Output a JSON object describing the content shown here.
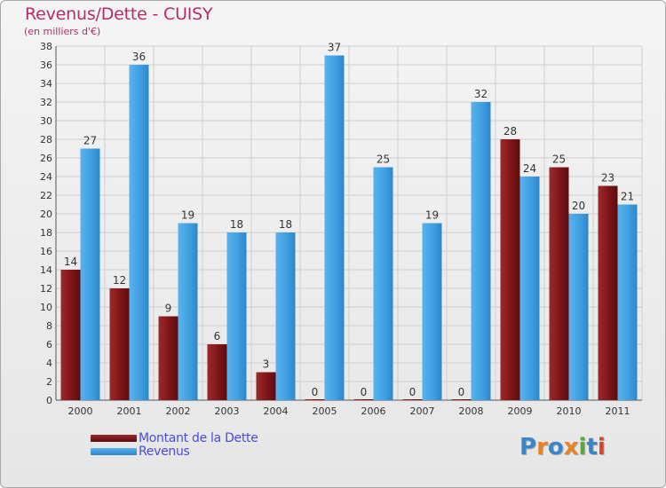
{
  "title": "Revenus/Dette - CUISY",
  "subtitle": "(en milliers d'€)",
  "logo": {
    "letters": [
      {
        "ch": "P",
        "color": "#3a86c8"
      },
      {
        "ch": "r",
        "color": "#e8822a"
      },
      {
        "ch": "o",
        "color": "#3a86c8"
      },
      {
        "ch": "x",
        "color": "#e8822a"
      },
      {
        "ch": "i",
        "color": "#5aa83a"
      },
      {
        "ch": "t",
        "color": "#3a86c8"
      },
      {
        "ch": "i",
        "color": "#d9472b"
      }
    ]
  },
  "colors": {
    "dette": "#7b1416",
    "revenus": "#3e9ee0",
    "axis_text": "#333333",
    "grid": "#cfcfcf"
  },
  "chart_data": {
    "type": "bar",
    "categories": [
      "2000",
      "2001",
      "2002",
      "2003",
      "2004",
      "2005",
      "2006",
      "2007",
      "2008",
      "2009",
      "2010",
      "2011"
    ],
    "series": [
      {
        "name": "Montant de la Dette",
        "values": [
          14,
          12,
          9,
          6,
          3,
          0,
          0,
          0,
          0,
          28,
          25,
          23
        ]
      },
      {
        "name": "Revenus",
        "values": [
          27,
          36,
          19,
          18,
          18,
          37,
          25,
          19,
          32,
          24,
          20,
          21
        ]
      }
    ],
    "y_ticks": [
      "0",
      "2",
      "4",
      "6",
      "8",
      "10",
      "12",
      "14",
      "16",
      "18",
      "20",
      "22",
      "24",
      "26",
      "28",
      "30",
      "32",
      "34",
      "36",
      "38"
    ],
    "ylim": [
      0,
      38
    ],
    "grid": true,
    "legend_position": "bottom-left",
    "data_labels": true
  }
}
